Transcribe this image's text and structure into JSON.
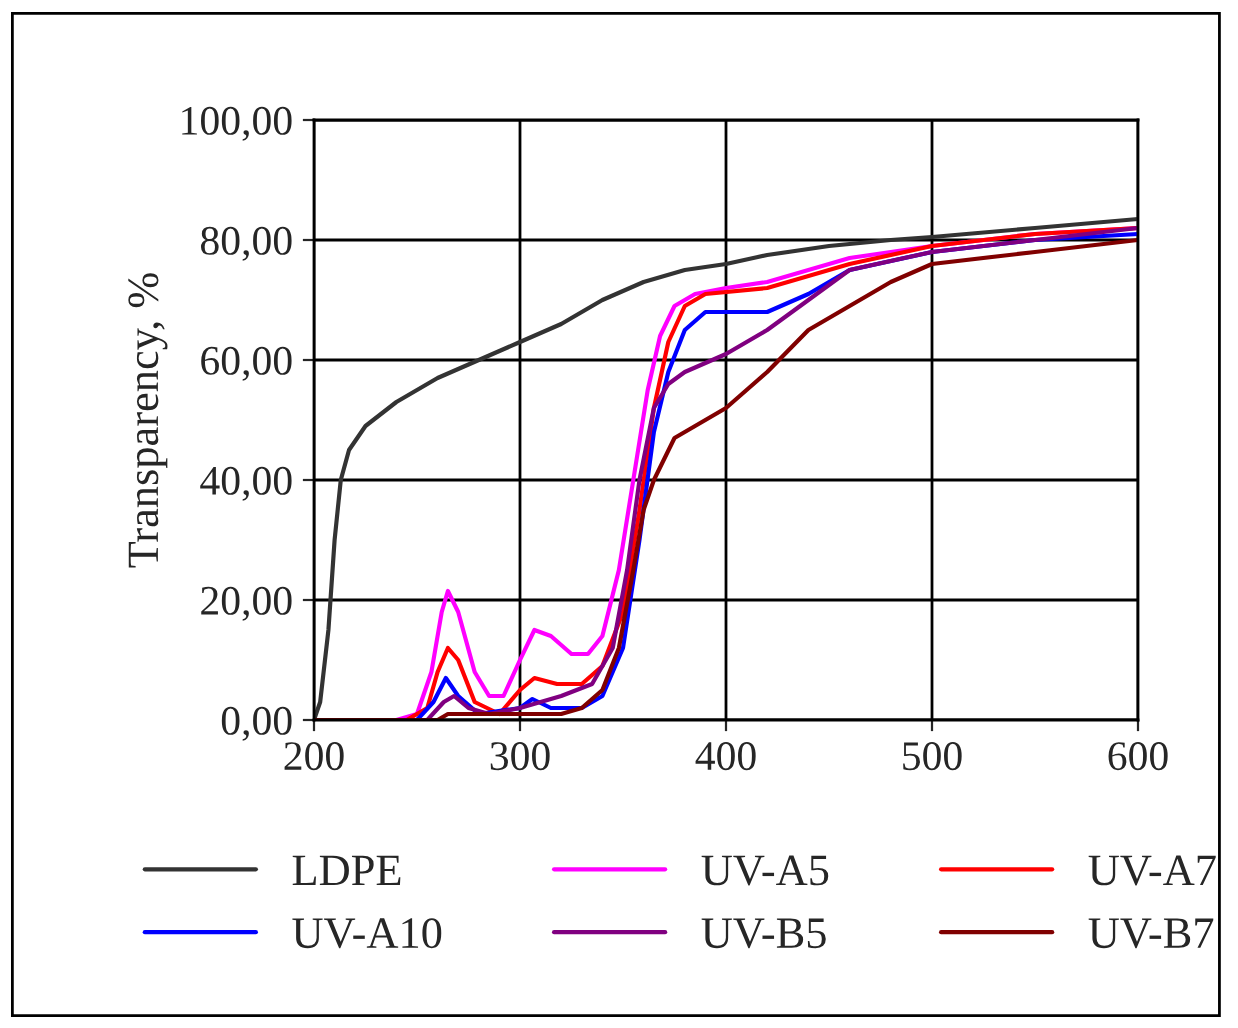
{
  "chart_data": {
    "type": "line",
    "ylabel": "Transparency, %",
    "xlim": [
      200,
      600
    ],
    "xticks": [
      200,
      300,
      400,
      500,
      600
    ],
    "ylim": [
      0,
      100
    ],
    "yticks": [
      {
        "value": 0,
        "label": "0,00"
      },
      {
        "value": 20,
        "label": "20,00"
      },
      {
        "value": 40,
        "label": "40,00"
      },
      {
        "value": 60,
        "label": "60,00"
      },
      {
        "value": 80,
        "label": "80,00"
      },
      {
        "value": 100,
        "label": "100,00"
      }
    ],
    "grid": true,
    "legend": "bottom",
    "marker": "none",
    "line_style": "solid",
    "series": [
      {
        "name": "LDPE",
        "color": "#333333",
        "x": [
          200,
          203,
          207,
          210,
          213,
          217,
          225,
          240,
          260,
          280,
          300,
          320,
          340,
          360,
          380,
          400,
          420,
          450,
          480,
          500,
          550,
          600
        ],
        "values": [
          0,
          3,
          15,
          30,
          40,
          45,
          49,
          53,
          57,
          60,
          63,
          66,
          70,
          73,
          75,
          76,
          77.5,
          79,
          80,
          80.5,
          82,
          83.5
        ]
      },
      {
        "name": "UV-A5",
        "color": "#ff00ff",
        "x": [
          200,
          240,
          250,
          257,
          262,
          265,
          270,
          278,
          285,
          292,
          300,
          307,
          315,
          325,
          333,
          340,
          348,
          355,
          362,
          368,
          375,
          385,
          400,
          420,
          440,
          460,
          500,
          550,
          600
        ],
        "values": [
          0,
          0,
          1,
          8,
          18,
          21.5,
          18,
          8,
          4,
          4,
          10,
          15,
          14,
          11,
          11,
          14,
          25,
          40,
          55,
          64,
          69,
          71,
          72,
          73,
          75,
          77,
          79,
          81,
          82
        ]
      },
      {
        "name": "UV-A7",
        "color": "#ff0000",
        "x": [
          200,
          245,
          255,
          260,
          265,
          270,
          278,
          290,
          300,
          307,
          318,
          330,
          340,
          350,
          358,
          365,
          372,
          380,
          390,
          420,
          440,
          460,
          500,
          550,
          600
        ],
        "values": [
          0,
          0,
          2,
          8,
          12,
          10,
          3,
          1,
          5,
          7,
          6,
          6,
          9,
          18,
          35,
          52,
          63,
          69,
          71,
          72,
          74,
          76,
          79,
          81,
          82
        ]
      },
      {
        "name": "UV-A10",
        "color": "#0000ff",
        "x": [
          200,
          250,
          258,
          264,
          270,
          280,
          300,
          306,
          315,
          330,
          340,
          350,
          358,
          365,
          372,
          380,
          390,
          420,
          440,
          460,
          500,
          550,
          600
        ],
        "values": [
          0,
          0,
          3,
          7,
          4,
          1,
          2,
          3.5,
          2,
          2,
          4,
          12,
          30,
          48,
          58,
          65,
          68,
          68,
          71,
          75,
          78,
          80,
          81
        ]
      },
      {
        "name": "UV-B5",
        "color": "#800080",
        "x": [
          200,
          255,
          263,
          268,
          275,
          285,
          300,
          320,
          335,
          345,
          352,
          358,
          365,
          372,
          380,
          400,
          420,
          440,
          460,
          500,
          550,
          600
        ],
        "values": [
          0,
          0,
          3,
          4,
          2,
          1,
          2,
          4,
          6,
          12,
          25,
          40,
          52,
          56,
          58,
          61,
          65,
          70,
          75,
          78,
          80,
          82
        ]
      },
      {
        "name": "UV-B7",
        "color": "#800000",
        "x": [
          200,
          260,
          265,
          290,
          320,
          330,
          340,
          348,
          355,
          360,
          365,
          375,
          385,
          400,
          420,
          440,
          460,
          480,
          500,
          550,
          600
        ],
        "values": [
          0,
          0,
          1,
          1,
          1,
          2,
          5,
          12,
          25,
          35,
          40,
          47,
          49,
          52,
          58,
          65,
          69,
          73,
          76,
          78,
          80
        ]
      }
    ]
  }
}
